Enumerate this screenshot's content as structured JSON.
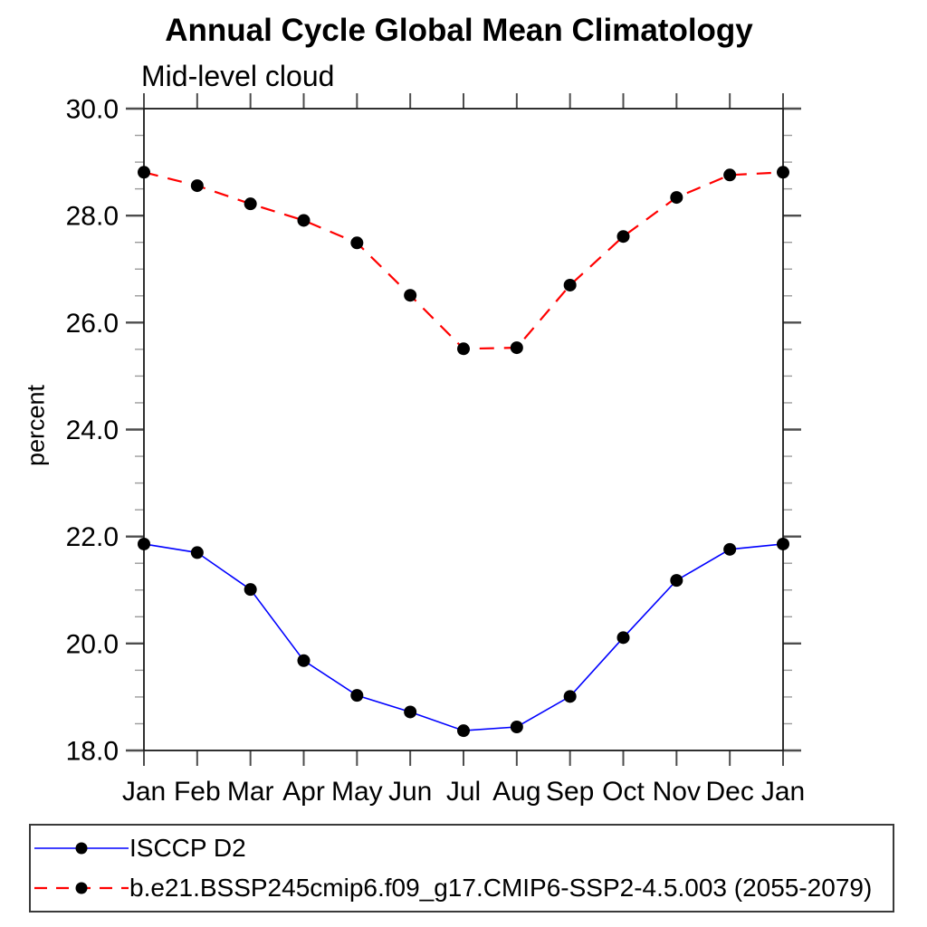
{
  "figure": {
    "title": "Annual Cycle Global Mean Climatology",
    "subtitle": "Mid-level cloud",
    "ylabel": "percent"
  },
  "chart_data": {
    "type": "line",
    "title": "Annual Cycle Global Mean Climatology",
    "subtitle": "Mid-level cloud",
    "ylabel": "percent",
    "xlabel": "",
    "x_categories": [
      "Jan",
      "Feb",
      "Mar",
      "Apr",
      "May",
      "Jun",
      "Jul",
      "Aug",
      "Sep",
      "Oct",
      "Nov",
      "Dec",
      "Jan"
    ],
    "series": [
      {
        "name": "ISCCP D2",
        "line_color": "#0000ff",
        "line_style": "solid",
        "marker": "filled-circle",
        "marker_color": "#000000",
        "values": [
          21.86,
          21.7,
          21.01,
          19.68,
          19.03,
          18.72,
          18.37,
          18.44,
          19.01,
          20.11,
          21.18,
          21.76,
          21.86
        ]
      },
      {
        "name": "b.e21.BSSP245cmip6.f09_g17.CMIP6-SSP2-4.5.003 (2055-2079)",
        "line_color": "#ff0000",
        "line_style": "dashed",
        "marker": "filled-circle",
        "marker_color": "#000000",
        "values": [
          28.81,
          28.56,
          28.22,
          27.91,
          27.49,
          26.51,
          25.51,
          25.53,
          26.7,
          27.61,
          28.34,
          28.76,
          28.81
        ]
      }
    ],
    "ylim": [
      18.0,
      30.0
    ],
    "yticks_major": [
      {
        "value": 18.0,
        "label": "18.0"
      },
      {
        "value": 20.0,
        "label": "20.0"
      },
      {
        "value": 22.0,
        "label": "22.0"
      },
      {
        "value": 24.0,
        "label": "24.0"
      },
      {
        "value": 26.0,
        "label": "26.0"
      },
      {
        "value": 28.0,
        "label": "28.0"
      },
      {
        "value": 30.0,
        "label": "30.0"
      }
    ],
    "ytick_minor_step": 0.5,
    "grid": false,
    "legend_position": "bottom-left-box",
    "axis_color": "#1a1a1a",
    "major_tick_color": "#4d4d4d",
    "minor_tick_color": "#9b9b9b"
  }
}
